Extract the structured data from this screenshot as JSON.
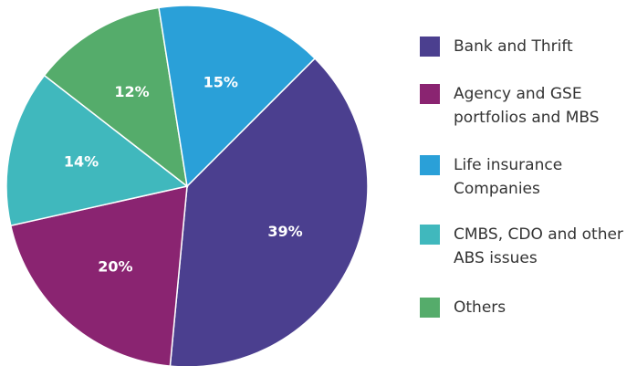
{
  "chart_data": {
    "type": "pie",
    "categories": [
      "Bank and Thrift",
      "Agency and GSE portfolios and MBS",
      "CMBS, CDO and other ABS issues",
      "Others",
      "Life insurance Companies"
    ],
    "values": [
      39,
      20,
      14,
      12,
      15
    ],
    "value_labels": [
      "39%",
      "20%",
      "14%",
      "12%",
      "15%"
    ],
    "colors": [
      "#4b3f8f",
      "#8a2471",
      "#40b8bd",
      "#55ac6b",
      "#2aa0d8"
    ],
    "start_angle": 45,
    "direction": "clockwise",
    "legend": "right"
  }
}
